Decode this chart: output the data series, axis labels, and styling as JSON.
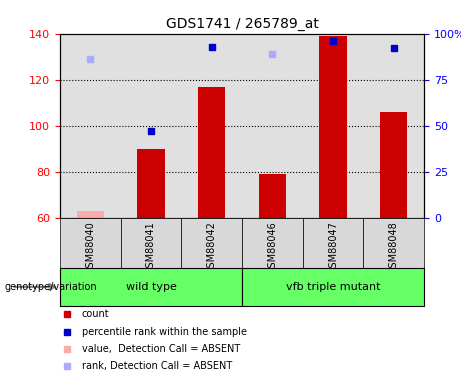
{
  "title": "GDS1741 / 265789_at",
  "samples": [
    "GSM88040",
    "GSM88041",
    "GSM88042",
    "GSM88046",
    "GSM88047",
    "GSM88048"
  ],
  "count_values": [
    null,
    90,
    117,
    79,
    139,
    106
  ],
  "count_absent": [
    63,
    null,
    null,
    null,
    null,
    null
  ],
  "rank_values_pct": [
    null,
    47,
    93,
    null,
    96,
    92
  ],
  "rank_absent_pct": [
    86,
    null,
    null,
    89,
    null,
    null
  ],
  "ylim": [
    60,
    140
  ],
  "y2lim": [
    0,
    100
  ],
  "yticks": [
    60,
    80,
    100,
    120,
    140
  ],
  "y2ticks": [
    0,
    25,
    50,
    75,
    100
  ],
  "dotted_lines": [
    80,
    100,
    120
  ],
  "bar_color": "#cc0000",
  "bar_absent_color": "#ffaaaa",
  "rank_color": "#0000cc",
  "rank_absent_color": "#aaaaff",
  "group_label": "genotype/variation",
  "group1_name": "wild type",
  "group2_name": "vfb triple mutant",
  "group_color": "#66ff66",
  "legend_items": [
    [
      "#cc0000",
      "count"
    ],
    [
      "#0000cc",
      "percentile rank within the sample"
    ],
    [
      "#ffaaaa",
      "value,  Detection Call = ABSENT"
    ],
    [
      "#aaaaff",
      "rank, Detection Call = ABSENT"
    ]
  ],
  "figsize": [
    4.61,
    3.75
  ],
  "dpi": 100
}
